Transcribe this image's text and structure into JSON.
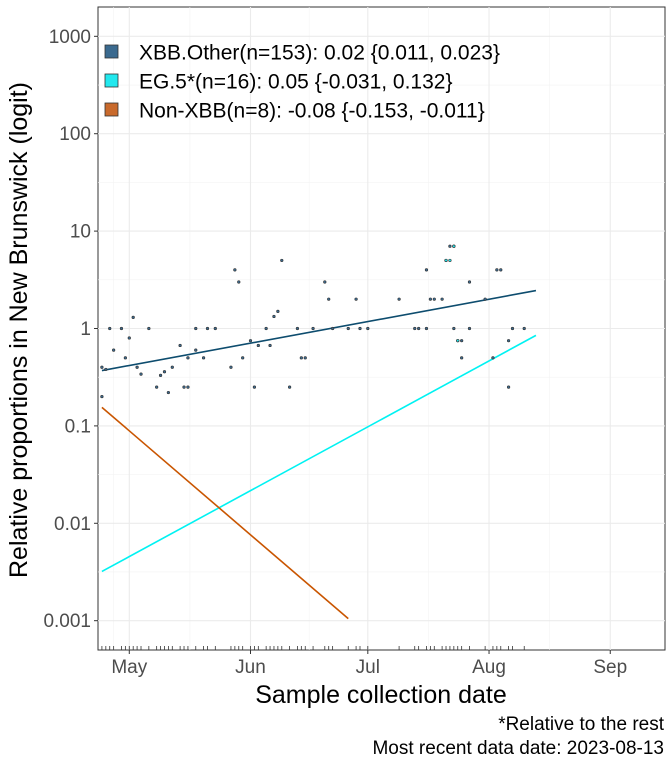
{
  "chart_data": {
    "type": "scatter",
    "title": "",
    "xlabel": "Sample collection date",
    "ylabel": "Relative proportions in New Brunswick (logit)",
    "y_scale": "log",
    "y_ticks": [
      0.001,
      0.01,
      0.1,
      1,
      10,
      100,
      1000
    ],
    "y_tick_labels": [
      "0.001",
      "0.01",
      "0.1",
      "1",
      "10",
      "100",
      "1000"
    ],
    "x_ticks": [
      "2023-05-01",
      "2023-06-01",
      "2023-07-01",
      "2023-08-01",
      "2023-09-01"
    ],
    "x_tick_labels": [
      "May",
      "Jun",
      "Jul",
      "Aug",
      "Sep"
    ],
    "xlim": [
      "2023-04-23",
      "2023-09-15"
    ],
    "ylim": [
      0.0005,
      2000
    ],
    "grid": true,
    "legend_position": "top-left",
    "series": [
      {
        "name": "XBB.Other(n=153): 0.02 {0.011, 0.023}",
        "color": "#3b6a8f",
        "line_color": "#0d4c6e",
        "fit": [
          [
            "2023-04-24",
            0.37
          ],
          [
            "2023-08-13",
            2.45
          ]
        ],
        "points": [
          [
            "2023-04-24",
            0.4
          ],
          [
            "2023-04-24",
            0.2
          ],
          [
            "2023-04-25",
            0.38
          ],
          [
            "2023-04-26",
            1.0
          ],
          [
            "2023-04-27",
            0.6
          ],
          [
            "2023-04-29",
            1.0
          ],
          [
            "2023-04-30",
            0.5
          ],
          [
            "2023-05-01",
            0.8
          ],
          [
            "2023-05-02",
            1.3
          ],
          [
            "2023-05-03",
            0.4
          ],
          [
            "2023-05-04",
            0.34
          ],
          [
            "2023-05-06",
            1.0
          ],
          [
            "2023-05-08",
            0.25
          ],
          [
            "2023-05-09",
            0.33
          ],
          [
            "2023-05-10",
            0.36
          ],
          [
            "2023-05-11",
            0.22
          ],
          [
            "2023-05-12",
            0.4
          ],
          [
            "2023-05-14",
            0.67
          ],
          [
            "2023-05-15",
            0.25
          ],
          [
            "2023-05-16",
            0.5
          ],
          [
            "2023-05-16",
            0.25
          ],
          [
            "2023-05-18",
            1.0
          ],
          [
            "2023-05-18",
            0.6
          ],
          [
            "2023-05-20",
            0.5
          ],
          [
            "2023-05-21",
            1.0
          ],
          [
            "2023-05-23",
            1.0
          ],
          [
            "2023-05-27",
            0.4
          ],
          [
            "2023-05-28",
            4.0
          ],
          [
            "2023-05-29",
            3.0
          ],
          [
            "2023-05-30",
            0.5
          ],
          [
            "2023-06-01",
            0.75
          ],
          [
            "2023-06-02",
            0.25
          ],
          [
            "2023-06-03",
            0.67
          ],
          [
            "2023-06-05",
            1.0
          ],
          [
            "2023-06-06",
            0.67
          ],
          [
            "2023-06-07",
            1.33
          ],
          [
            "2023-06-08",
            1.5
          ],
          [
            "2023-06-09",
            5.0
          ],
          [
            "2023-06-11",
            0.25
          ],
          [
            "2023-06-13",
            1.0
          ],
          [
            "2023-06-14",
            0.5
          ],
          [
            "2023-06-15",
            0.5
          ],
          [
            "2023-06-17",
            1.0
          ],
          [
            "2023-06-20",
            3.0
          ],
          [
            "2023-06-21",
            2.0
          ],
          [
            "2023-06-22",
            1.0
          ],
          [
            "2023-06-26",
            1.0
          ],
          [
            "2023-06-28",
            2.0
          ],
          [
            "2023-06-29",
            1.0
          ],
          [
            "2023-07-01",
            1.0
          ],
          [
            "2023-07-09",
            2.0
          ],
          [
            "2023-07-13",
            1.0
          ],
          [
            "2023-07-14",
            1.0
          ],
          [
            "2023-07-16",
            4.0
          ],
          [
            "2023-07-16",
            1.0
          ],
          [
            "2023-07-17",
            2.0
          ],
          [
            "2023-07-18",
            2.0
          ],
          [
            "2023-07-20",
            2.0
          ],
          [
            "2023-07-21",
            5.0
          ],
          [
            "2023-07-22",
            7.0
          ],
          [
            "2023-07-23",
            7.0
          ],
          [
            "2023-07-23",
            1.0
          ],
          [
            "2023-07-24",
            0.75
          ],
          [
            "2023-07-25",
            0.75
          ],
          [
            "2023-07-25",
            0.5
          ],
          [
            "2023-07-27",
            3.0
          ],
          [
            "2023-07-27",
            1.0
          ],
          [
            "2023-07-31",
            2.0
          ],
          [
            "2023-08-02",
            0.5
          ],
          [
            "2023-08-03",
            4.0
          ],
          [
            "2023-08-04",
            4.0
          ],
          [
            "2023-08-06",
            0.75
          ],
          [
            "2023-08-06",
            0.25
          ],
          [
            "2023-08-07",
            1.0
          ],
          [
            "2023-08-10",
            1.0
          ]
        ]
      },
      {
        "name": "EG.5*(n=16): 0.05 {-0.031, 0.132}",
        "color": "#22e8ee",
        "line_color": "#00f2f2",
        "fit": [
          [
            "2023-04-24",
            0.0032
          ],
          [
            "2023-08-13",
            0.85
          ]
        ],
        "points": [
          [
            "2023-07-21",
            5.0
          ],
          [
            "2023-07-22",
            5.0
          ],
          [
            "2023-07-23",
            7.0
          ],
          [
            "2023-07-24",
            0.75
          ]
        ]
      },
      {
        "name": "Non-XBB(n=8): -0.08 {-0.153, -0.011}",
        "color": "#c96a2c",
        "line_color": "#c95500",
        "fit": [
          [
            "2023-04-24",
            0.155
          ],
          [
            "2023-06-26",
            0.00105
          ]
        ],
        "points": []
      }
    ],
    "captions": [
      "*Relative to the rest",
      "Most recent data date: 2023-08-13"
    ]
  }
}
